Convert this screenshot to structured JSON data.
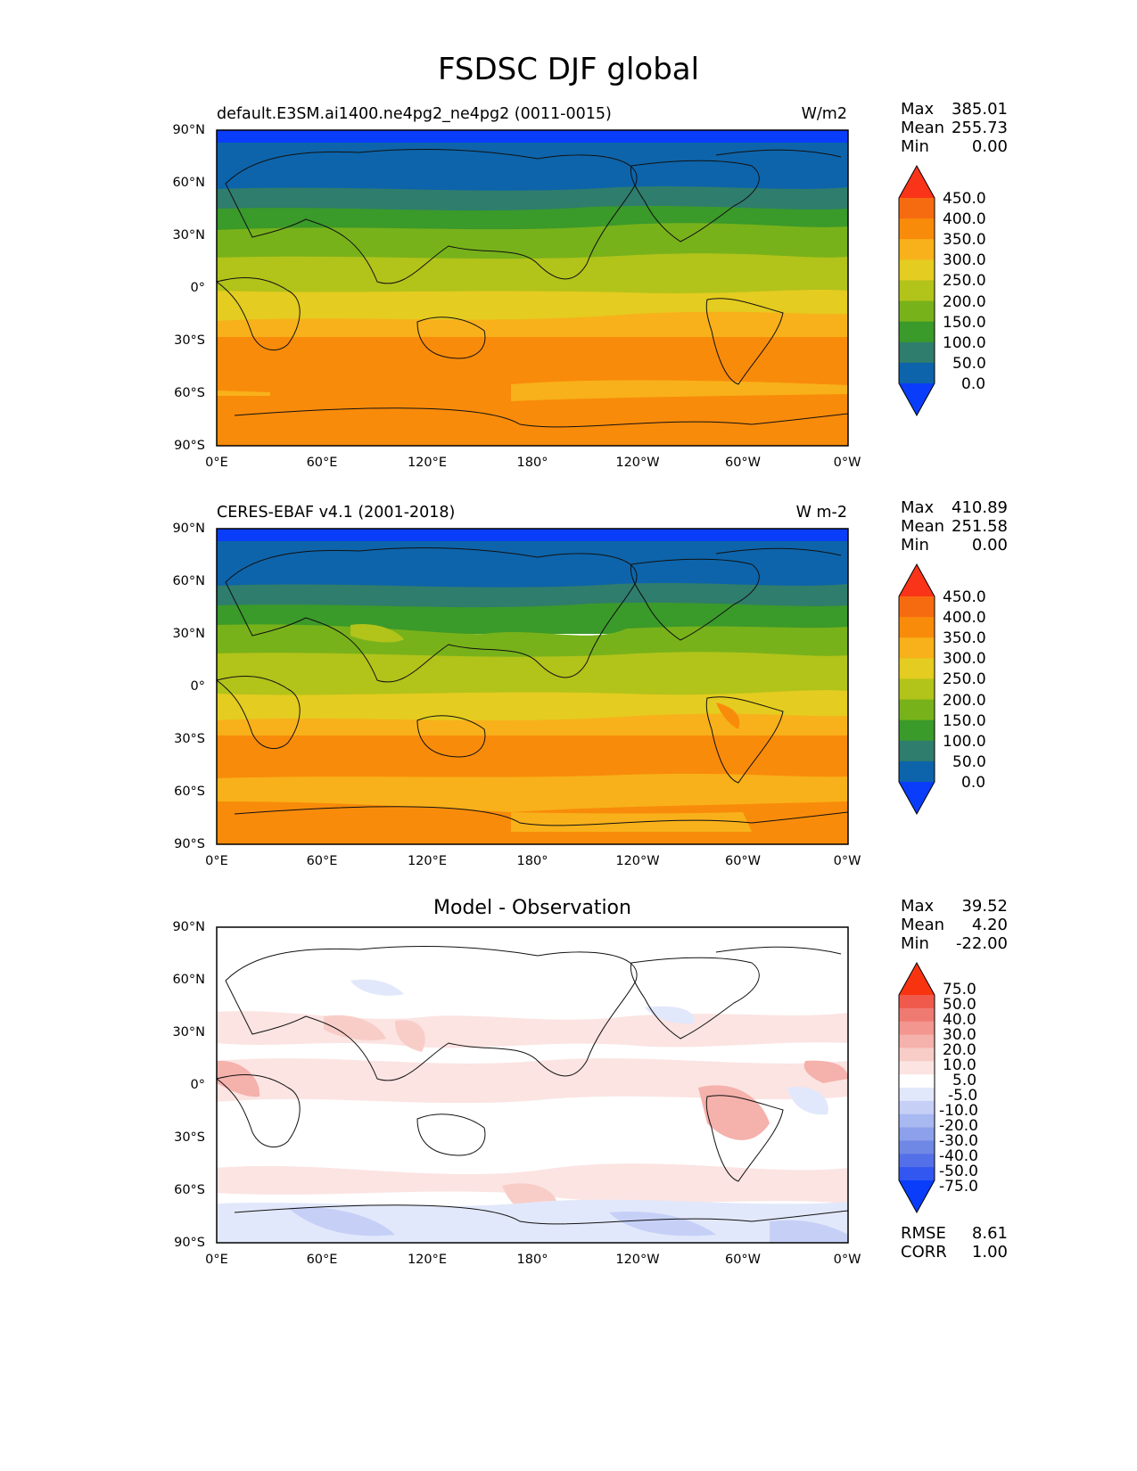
{
  "figure_title": "FSDSC DJF global",
  "colors": {
    "test_levels": [
      "#0a3dfa",
      "#0d64aa",
      "#2f7d6c",
      "#3a9a2a",
      "#78b21a",
      "#b2c31a",
      "#e4cc20",
      "#f8b11a",
      "#f98b0a",
      "#f76b10",
      "#fa3418"
    ],
    "diff_levels": [
      "#0a3dfa",
      "#3157f0",
      "#5470e8",
      "#7088e5",
      "#8ca0eb",
      "#a8b8f1",
      "#c6d0f7",
      "#e2e8fb",
      "#ffffff",
      "#fbe4e2",
      "#f8cdc8",
      "#f5b1ab",
      "#f2968f",
      "#ef7a72",
      "#ef5a4c",
      "#f83410"
    ]
  },
  "panels": [
    {
      "id": "test",
      "title_left": "default.E3SM.ai1400.ne4pg2_ne4pg2 (0011-0015)",
      "title_right": "W/m2",
      "stats": {
        "max_label": "Max",
        "max": "385.01",
        "mean_label": "Mean",
        "mean": "255.73",
        "min_label": "Min",
        "min": "0.00"
      },
      "colorbar_labels": [
        "450.0",
        "400.0",
        "350.0",
        "300.0",
        "250.0",
        "200.0",
        "150.0",
        "100.0",
        "50.0",
        "0.0"
      ]
    },
    {
      "id": "ref",
      "title_left": "CERES-EBAF v4.1 (2001-2018)",
      "title_right": "W m-2",
      "stats": {
        "max_label": "Max",
        "max": "410.89",
        "mean_label": "Mean",
        "mean": "251.58",
        "min_label": "Min",
        "min": "0.00"
      },
      "colorbar_labels": [
        "450.0",
        "400.0",
        "350.0",
        "300.0",
        "250.0",
        "200.0",
        "150.0",
        "100.0",
        "50.0",
        "0.0"
      ]
    },
    {
      "id": "diff",
      "title_center": "Model - Observation",
      "stats": {
        "max_label": "Max",
        "max": "39.52",
        "mean_label": "Mean",
        "mean": "4.20",
        "min_label": "Min",
        "min": "-22.00"
      },
      "colorbar_labels": [
        "75.0",
        "50.0",
        "40.0",
        "30.0",
        "20.0",
        "10.0",
        "5.0",
        "-5.0",
        "-10.0",
        "-20.0",
        "-30.0",
        "-40.0",
        "-50.0",
        "-75.0"
      ],
      "metrics": {
        "rmse_label": "RMSE",
        "rmse": "8.61",
        "corr_label": "CORR",
        "corr": "1.00"
      }
    }
  ],
  "lat_ticks": [
    "90°N",
    "60°N",
    "30°N",
    "0°",
    "30°S",
    "60°S",
    "90°S"
  ],
  "lon_ticks": [
    "0°E",
    "60°E",
    "120°E",
    "180°",
    "120°W",
    "60°W",
    "0°W"
  ]
}
